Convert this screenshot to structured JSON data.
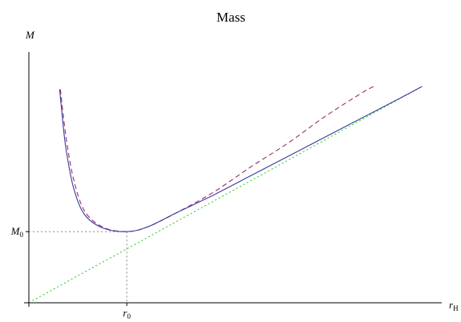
{
  "chart_data": {
    "type": "line",
    "title": "Mass",
    "xlabel": "r_H",
    "ylabel": "M",
    "xlim": [
      0,
      11
    ],
    "ylim": [
      0,
      9
    ],
    "grid": false,
    "x_ticks": [
      {
        "label": "r_0",
        "value": 2.64
      }
    ],
    "y_ticks": [
      {
        "label": "M_0",
        "value": 2.4
      }
    ],
    "series": [
      {
        "color": "#3a3a9f",
        "style": "solid",
        "x": [
          0.83,
          0.9,
          1.0,
          1.2,
          1.5,
          2.0,
          2.64,
          3.2,
          4.0,
          5.0,
          6.0,
          8.0,
          10.0,
          10.6
        ],
        "y": [
          7.2,
          6.3,
          5.2,
          3.9,
          2.98,
          2.52,
          2.4,
          2.56,
          3.05,
          3.65,
          4.3,
          5.6,
          6.9,
          7.3
        ]
      },
      {
        "color": "#9a2a6a",
        "style": "dashed",
        "x": [
          0.85,
          1.0,
          1.2,
          1.5,
          2.0,
          2.64,
          3.2,
          4.0,
          5.0,
          6.0,
          7.0,
          8.0,
          9.0,
          9.3
        ],
        "y": [
          7.2,
          5.6,
          4.2,
          3.1,
          2.55,
          2.4,
          2.56,
          3.05,
          3.75,
          4.6,
          5.4,
          6.3,
          7.1,
          7.3
        ]
      },
      {
        "color": "#33cc33",
        "style": "dotted",
        "x": [
          0.1,
          10.6
        ],
        "y": [
          0.07,
          7.3
        ]
      }
    ],
    "guide_lines": {
      "color": "#888888",
      "style": "dotted",
      "point": {
        "x": 2.64,
        "y": 2.4
      }
    }
  }
}
